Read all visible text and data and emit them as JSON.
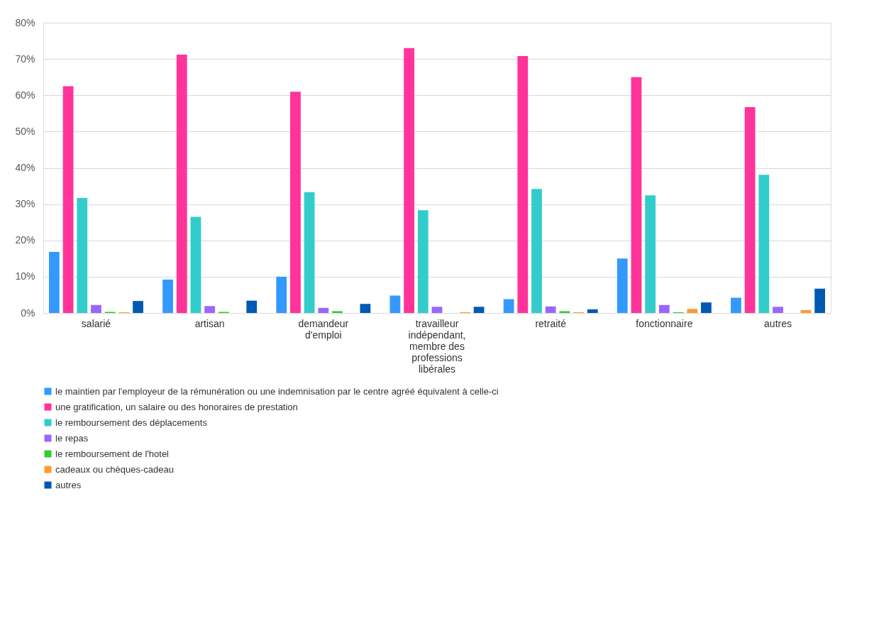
{
  "chart_data": {
    "type": "bar",
    "categories": [
      "salarié",
      "artisan",
      "demandeur d'emploi",
      "travailleur indépendant, membre des professions libérales",
      "retraité",
      "fonctionnaire",
      "autres"
    ],
    "series": [
      {
        "name": "le maintien par l'employeur de la rémunération ou une indemnisation par le centre agréé équivalent à celle-ci",
        "color": "#3399ff",
        "values": [
          16.8,
          9.2,
          10,
          4.8,
          3.8,
          15,
          4.2
        ]
      },
      {
        "name": "une gratification, un salaire ou des honoraires de prestation",
        "color": "#ff3399",
        "values": [
          62.5,
          71.2,
          61,
          73,
          70.8,
          65,
          56.7
        ]
      },
      {
        "name": "le remboursement des déplacements",
        "color": "#33cccc",
        "values": [
          31.7,
          26.5,
          33.3,
          28.3,
          34.2,
          32.4,
          38.1
        ]
      },
      {
        "name": "le repas",
        "color": "#9966ff",
        "values": [
          2.2,
          1.9,
          1.4,
          1.7,
          1.8,
          2.2,
          1.7
        ]
      },
      {
        "name": "le remboursement de l'hotel",
        "color": "#33cc33",
        "values": [
          0.3,
          0.3,
          0.5,
          null,
          0.5,
          0.2,
          null
        ]
      },
      {
        "name": "cadeaux ou chèques-cadeau",
        "color": "#ff9933",
        "values": [
          0.2,
          null,
          null,
          0.2,
          0.2,
          1.1,
          0.8
        ]
      },
      {
        "name": "autres",
        "color": "#0059b3",
        "values": [
          3.3,
          3.4,
          2.5,
          1.7,
          1.0,
          2.9,
          6.7
        ]
      }
    ],
    "ylim": [
      0,
      80
    ],
    "yticks": [
      {
        "value": 0,
        "label": "0%"
      },
      {
        "value": 10,
        "label": "10%"
      },
      {
        "value": 20,
        "label": "20%"
      },
      {
        "value": 30,
        "label": "30%"
      },
      {
        "value": 40,
        "label": "40%"
      },
      {
        "value": 50,
        "label": "50%"
      },
      {
        "value": 60,
        "label": "60%"
      },
      {
        "value": 70,
        "label": "70%"
      },
      {
        "value": 80,
        "label": "80%"
      }
    ],
    "grid": "y",
    "legend": "bottom"
  }
}
